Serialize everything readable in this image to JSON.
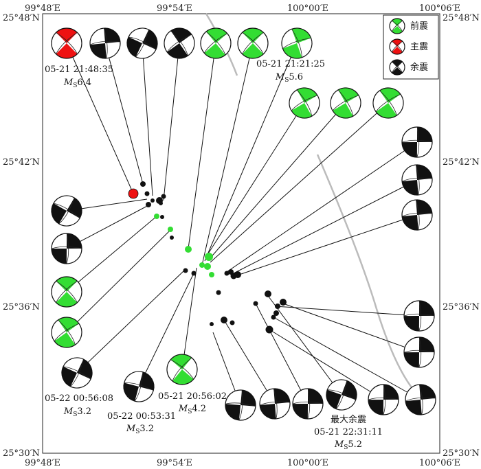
{
  "coords": {
    "top": [
      "99°48′E",
      "99°54′E",
      "100°00′E",
      "100°06′E"
    ],
    "bottom": [
      "99°48′E",
      "99°54′E",
      "100°00′E",
      "100°06′E"
    ],
    "left": [
      "25°48′N",
      "25°42′N",
      "25°36′N",
      "25°30′N"
    ],
    "right": [
      "25°48′N",
      "25°42′N",
      "25°36′N",
      "25°30′N"
    ]
  },
  "legend": {
    "items": [
      {
        "label": "前震",
        "color": "#33dd33"
      },
      {
        "label": "主震",
        "color": "#ee1111"
      },
      {
        "label": "余震",
        "color": "#111111"
      }
    ]
  },
  "annotations": {
    "main": {
      "time": "05-21 21:48:35",
      "mag_prefix": "M",
      "mag_sub": "S",
      "mag_val": "6.4"
    },
    "fore1": {
      "time": "05-21 21:21:25",
      "mag_prefix": "M",
      "mag_sub": "S",
      "mag_val": "5.6"
    },
    "fore2": {
      "time": "05-21 20:56:02",
      "mag_prefix": "M",
      "mag_sub": "S",
      "mag_val": "4.2"
    },
    "after1": {
      "time": "05-22 00:56:08",
      "mag_prefix": "M",
      "mag_sub": "S",
      "mag_val": "3.2"
    },
    "after2": {
      "time": "05-22 00:53:31",
      "mag_prefix": "M",
      "mag_sub": "S",
      "mag_val": "3.2"
    },
    "largest": {
      "title": "最大余震",
      "time": "05-21 22:31:11",
      "mag_prefix": "M",
      "mag_sub": "S",
      "mag_val": "5.2"
    }
  },
  "colors": {
    "foreshock": "#33dd33",
    "mainshock": "#ee1111",
    "aftershock": "#111111",
    "fault": "#bbbbbb"
  }
}
